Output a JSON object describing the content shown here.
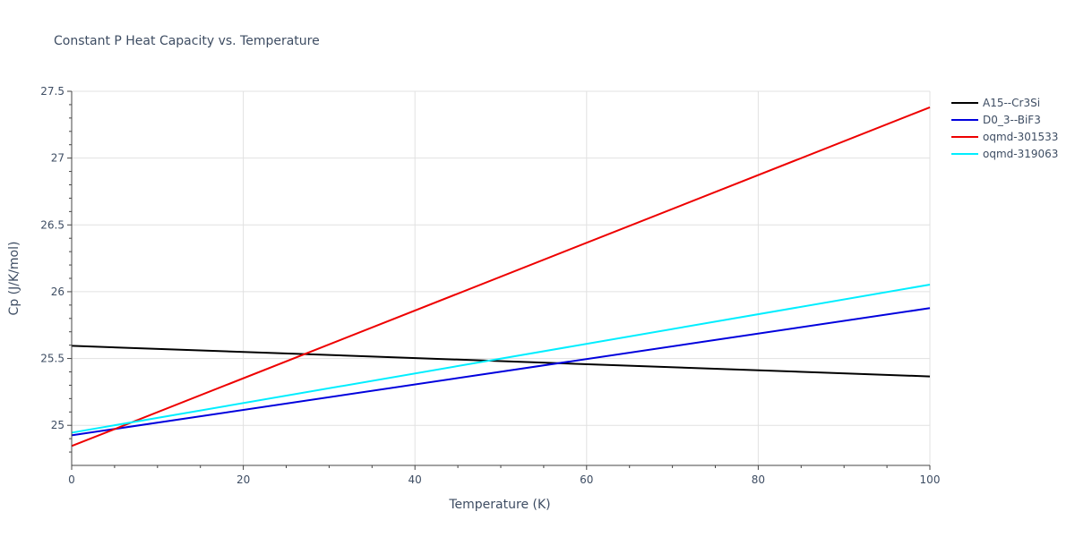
{
  "chart_data": {
    "type": "line",
    "title": "Constant P Heat Capacity vs. Temperature",
    "xlabel": "Temperature (K)",
    "ylabel": "Cp (J/K/mol)",
    "xlim": [
      0,
      100
    ],
    "ylim": [
      24.7,
      27.5
    ],
    "x_ticks": [
      0,
      20,
      40,
      60,
      80,
      100
    ],
    "x_minor_ticks": [
      5,
      10,
      15,
      25,
      30,
      35,
      45,
      50,
      55,
      65,
      70,
      75,
      85,
      90,
      95
    ],
    "y_ticks": [
      25,
      25.5,
      26,
      26.5,
      27,
      27.5
    ],
    "y_minor_ticks": [
      24.8,
      24.9,
      25.1,
      25.2,
      25.3,
      25.4,
      25.6,
      25.7,
      25.8,
      25.9,
      26.1,
      26.2,
      26.3,
      26.4,
      26.6,
      26.7,
      26.8,
      26.9,
      27.1,
      27.2,
      27.3,
      27.4
    ],
    "grid": true,
    "legend_position": "right",
    "series": [
      {
        "name": "A15--Cr3Si",
        "color": "#000000",
        "x": [
          0,
          100
        ],
        "y": [
          25.595,
          25.366
        ]
      },
      {
        "name": "D0_3--BiF3",
        "color": "#0000dd",
        "x": [
          0,
          100
        ],
        "y": [
          24.925,
          25.877
        ]
      },
      {
        "name": "oqmd-301533",
        "color": "#ee0000",
        "x": [
          0,
          100
        ],
        "y": [
          24.845,
          27.38
        ]
      },
      {
        "name": "oqmd-319063",
        "color": "#00eeff",
        "x": [
          0,
          100
        ],
        "y": [
          24.945,
          26.053
        ]
      }
    ]
  }
}
